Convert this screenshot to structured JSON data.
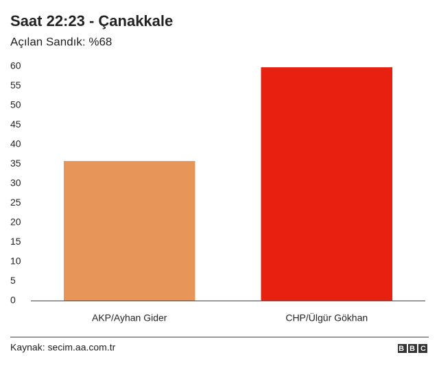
{
  "chart_data": {
    "type": "bar",
    "title": "Saat 22:23 - Çanakkale",
    "subtitle": "Açılan Sandık: %68",
    "categories": [
      "AKP/Ayhan Gider",
      "CHP/Ülgür Gökhan"
    ],
    "values": [
      35.8,
      59.8
    ],
    "colors": [
      "#e8955a",
      "#e8200f"
    ],
    "ylim": [
      0,
      60
    ],
    "yticks": [
      0,
      5,
      10,
      15,
      20,
      25,
      30,
      35,
      40,
      45,
      50,
      55,
      60
    ],
    "grid": false,
    "source": "Kaynak: secim.aa.com.tr",
    "logo": "BBC"
  }
}
